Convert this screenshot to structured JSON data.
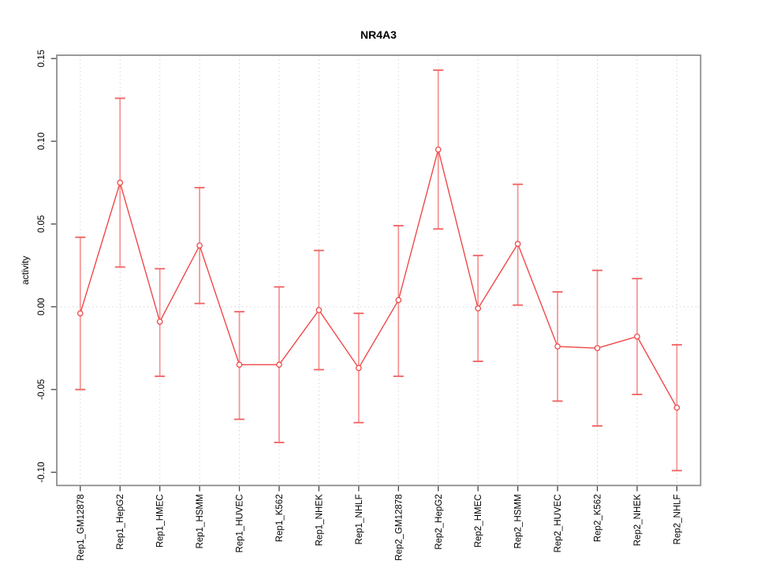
{
  "chart_data": {
    "type": "line",
    "has_error_bars": true,
    "title": "NR4A3",
    "xlabel": "",
    "ylabel": "activity",
    "categories": [
      "Rep1_GM12878",
      "Rep1_HepG2",
      "Rep1_HMEC",
      "Rep1_HSMM",
      "Rep1_HUVEC",
      "Rep1_K562",
      "Rep1_NHEK",
      "Rep1_NHLF",
      "Rep2_GM12878",
      "Rep2_HepG2",
      "Rep2_HMEC",
      "Rep2_HSMM",
      "Rep2_HUVEC",
      "Rep2_K562",
      "Rep2_NHEK",
      "Rep2_NHLF"
    ],
    "series": [
      {
        "name": "NR4A3 activity",
        "values": [
          -0.004,
          0.075,
          -0.009,
          0.037,
          -0.035,
          -0.035,
          -0.002,
          -0.037,
          0.004,
          0.095,
          -0.001,
          0.038,
          -0.024,
          -0.025,
          -0.018,
          -0.061
        ],
        "error_low": [
          -0.05,
          0.024,
          -0.042,
          0.002,
          -0.068,
          -0.082,
          -0.038,
          -0.07,
          -0.042,
          0.047,
          -0.033,
          0.001,
          -0.057,
          -0.072,
          -0.053,
          -0.099
        ],
        "error_high": [
          0.042,
          0.126,
          0.023,
          0.072,
          -0.003,
          0.012,
          0.034,
          -0.004,
          0.049,
          0.143,
          0.031,
          0.074,
          0.009,
          0.022,
          0.017,
          -0.023
        ]
      }
    ],
    "ylim": [
      -0.108,
      0.152
    ],
    "yticks": [
      {
        "value": -0.1,
        "label": "-0.10"
      },
      {
        "value": -0.05,
        "label": "-0.05"
      },
      {
        "value": 0.0,
        "label": "0.00"
      },
      {
        "value": 0.05,
        "label": "0.05"
      },
      {
        "value": 0.1,
        "label": "0.10"
      },
      {
        "value": 0.15,
        "label": "0.15"
      }
    ],
    "grid": {
      "vertical": "dotted gridline at each category",
      "horizontal": "dotted gridline at y = 0 only"
    },
    "zero_line": true,
    "marker": "open-circle",
    "colors": {
      "series_line": "#f04848",
      "error_bar": "#f59191",
      "error_cap": "#f26060",
      "grid": "#d6d6d6",
      "axis_box": "#888888",
      "tick": "#444444",
      "text": "#000000",
      "marker_fill": "#ffffff",
      "background": "#ffffff"
    }
  }
}
